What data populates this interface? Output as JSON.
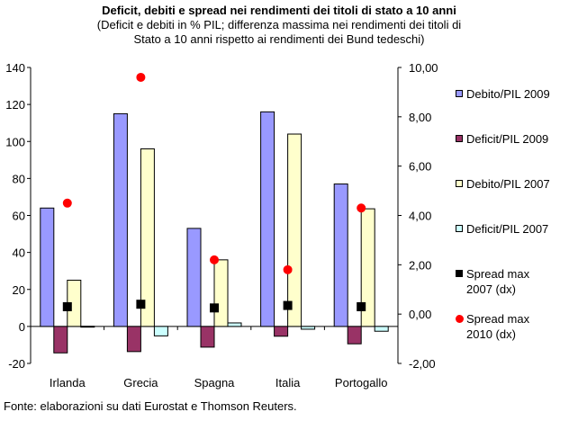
{
  "chart_data": {
    "type": "bar",
    "title": "Deficit, debiti e spread nei rendimenti dei titoli di stato a 10 anni",
    "subtitle_lines": [
      "(Deficit e debiti in % PIL; differenza massima nei rendimenti dei titoli di",
      "Stato a 10 anni rispetto ai rendimenti dei Bund tedeschi)"
    ],
    "categories": [
      "Irlanda",
      "Grecia",
      "Spagna",
      "Italia",
      "Portogallo"
    ],
    "y_left": {
      "ylim": [
        -20,
        140
      ],
      "ticks": [
        -20,
        0,
        20,
        40,
        60,
        80,
        100,
        120,
        140
      ],
      "tick_labels": [
        "-20",
        "0",
        "20",
        "40",
        "60",
        "80",
        "100",
        "120",
        "140"
      ]
    },
    "y_right": {
      "ylim": [
        -2,
        10
      ],
      "ticks": [
        -2,
        0,
        2,
        4,
        6,
        8,
        10
      ],
      "tick_labels": [
        "-2,00",
        "0,00",
        "2,00",
        "4,00",
        "6,00",
        "8,00",
        "10,00"
      ]
    },
    "series": [
      {
        "name": "Debito/PIL 2009",
        "kind": "bar",
        "axis": "left",
        "color": "#9999ff",
        "values": [
          64,
          115,
          53,
          116,
          77
        ]
      },
      {
        "name": "Deficit/PIL 2009",
        "kind": "bar",
        "axis": "left",
        "color": "#993366",
        "values": [
          -14.3,
          -13.6,
          -11.2,
          -5.3,
          -9.4
        ]
      },
      {
        "name": "Debito/PIL 2007",
        "kind": "bar",
        "axis": "left",
        "color": "#ffffcc",
        "values": [
          25,
          96,
          36,
          104,
          63.6
        ]
      },
      {
        "name": "Deficit/PIL 2007",
        "kind": "bar",
        "axis": "left",
        "color": "#ccffff",
        "values": [
          0.1,
          -5.1,
          1.9,
          -1.5,
          -2.6
        ]
      },
      {
        "name": "Spread max\n2007 (dx)",
        "kind": "marker-square",
        "axis": "right",
        "color": "#000000",
        "values": [
          0.3,
          0.4,
          0.25,
          0.35,
          0.3
        ]
      },
      {
        "name": "Spread max\n2010 (dx)",
        "kind": "marker-dot",
        "axis": "right",
        "color": "#ff0000",
        "values": [
          4.5,
          9.6,
          2.2,
          1.8,
          4.3
        ]
      }
    ],
    "legend_position": "right",
    "grid": false
  },
  "source": "Fonte: elaborazioni su dati Eurostat e Thomson Reuters."
}
